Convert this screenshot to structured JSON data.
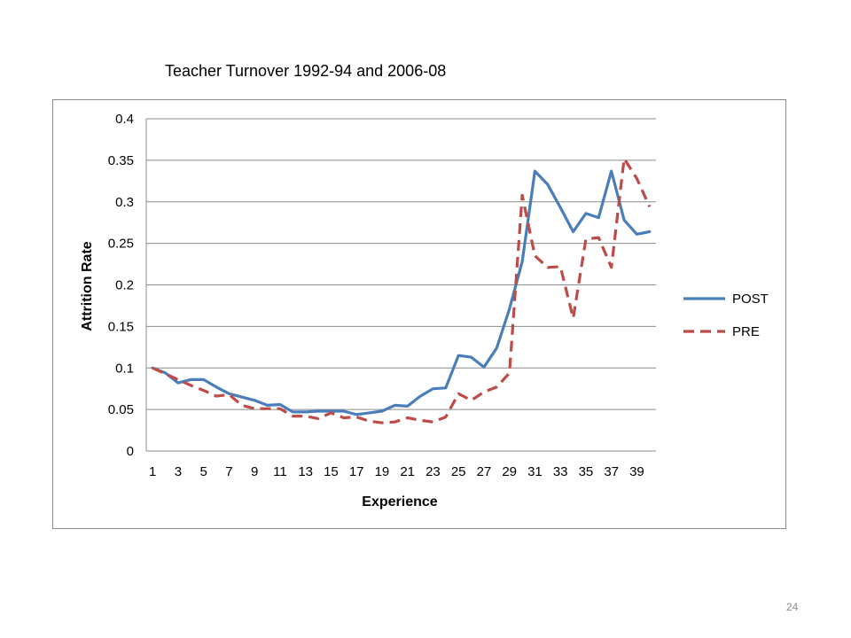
{
  "slide": {
    "title": "Teacher Turnover 1992-94 and 2006-08",
    "page_number": "24"
  },
  "colors": {
    "post": "#4a7ebb",
    "pre": "#be4b48",
    "grid": "#8c8c8c",
    "frame": "#8c8c8c"
  },
  "chart_data": {
    "type": "line",
    "title": "",
    "xlabel": "Experience",
    "ylabel": "Attrition Rate",
    "ylim": [
      0,
      0.4
    ],
    "y_ticks": [
      "0",
      "0.05",
      "0.1",
      "0.15",
      "0.2",
      "0.25",
      "0.3",
      "0.35",
      "0.4"
    ],
    "x_tick_labels": [
      "1",
      "3",
      "5",
      "7",
      "9",
      "11",
      "13",
      "15",
      "17",
      "19",
      "21",
      "23",
      "25",
      "27",
      "29",
      "31",
      "33",
      "35",
      "37",
      "39"
    ],
    "categories": [
      1,
      2,
      3,
      4,
      5,
      6,
      7,
      8,
      9,
      10,
      11,
      12,
      13,
      14,
      15,
      16,
      17,
      18,
      19,
      20,
      21,
      22,
      23,
      24,
      25,
      26,
      27,
      28,
      29,
      30,
      31,
      32,
      33,
      34,
      35,
      36,
      37,
      38,
      39,
      40
    ],
    "grid": "horizontal",
    "legend_position": "right",
    "series": [
      {
        "name": "POST",
        "style": "solid",
        "values": [
          0.1,
          0.094,
          0.082,
          0.086,
          0.086,
          0.077,
          0.069,
          0.065,
          0.061,
          0.055,
          0.056,
          0.047,
          0.047,
          0.048,
          0.048,
          0.048,
          0.044,
          0.046,
          0.048,
          0.055,
          0.054,
          0.066,
          0.075,
          0.076,
          0.115,
          0.113,
          0.101,
          0.124,
          0.171,
          0.228,
          0.337,
          0.321,
          0.293,
          0.264,
          0.286,
          0.281,
          0.337,
          0.278,
          0.261,
          0.264
        ]
      },
      {
        "name": "PRE",
        "style": "dashed",
        "values": [
          0.1,
          0.093,
          0.086,
          0.079,
          0.073,
          0.066,
          0.068,
          0.055,
          0.051,
          0.051,
          0.051,
          0.042,
          0.042,
          0.039,
          0.046,
          0.04,
          0.041,
          0.036,
          0.034,
          0.035,
          0.04,
          0.037,
          0.035,
          0.041,
          0.069,
          0.061,
          0.071,
          0.077,
          0.094,
          0.308,
          0.235,
          0.221,
          0.222,
          0.16,
          0.255,
          0.257,
          0.221,
          0.352,
          0.328,
          0.294
        ]
      }
    ]
  }
}
